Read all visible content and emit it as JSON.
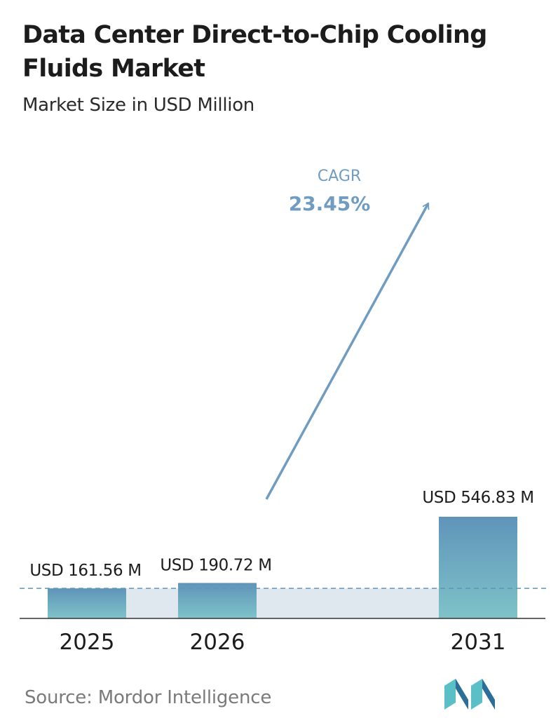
{
  "chart_data": {
    "type": "bar",
    "title": "Data Center Direct-to-Chip Cooling Fluids Market",
    "subtitle": "Market Size in USD Million",
    "categories": [
      "2025",
      "2026",
      "2031"
    ],
    "values": [
      161.56,
      190.72,
      546.83
    ],
    "value_labels": [
      "USD 161.56 M",
      "USD 190.72 M",
      "USD 546.83 M"
    ],
    "cagr_label": "CAGR",
    "cagr_value": "23.45%",
    "grid": false,
    "legend": "none",
    "colors": {
      "bar_top": "#5f94b9",
      "bar_bottom": "#7fc3c9",
      "band": "#dfe8ef",
      "arrow": "#6f9cc0",
      "dashed_line": "#5f94b9",
      "baseline": "#333333"
    }
  },
  "source": "Source: Mordor Intelligence",
  "logo": {
    "icon": "mordor-intelligence-logo-icon",
    "colors": [
      "#2c6e98",
      "#5bbfc8"
    ]
  }
}
